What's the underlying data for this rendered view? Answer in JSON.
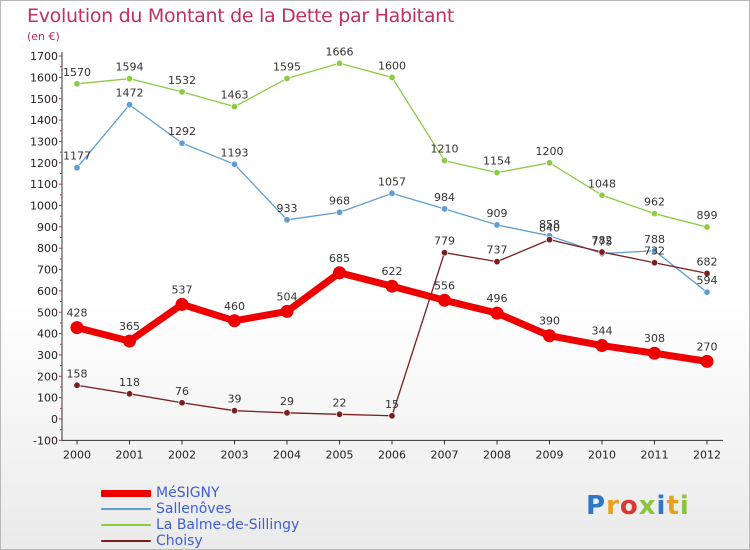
{
  "header": {
    "title": "Evolution du Montant de la Dette par Habitant",
    "unit": "(en €)"
  },
  "brand": {
    "text": "Proxiti",
    "letter_colors": [
      "#2f78c8",
      "#e8a020",
      "#d83a30",
      "#8cc43c",
      "#2f78c8",
      "#e8a020",
      "#8cc43c"
    ]
  },
  "chart_data": {
    "type": "line",
    "title": "Evolution du Montant de la Dette par Habitant",
    "subtitle": "(en €)",
    "xlabel": "",
    "ylabel": "",
    "x": [
      "2000",
      "2001",
      "2002",
      "2003",
      "2004",
      "2005",
      "2006",
      "2007",
      "2008",
      "2009",
      "2010",
      "2011",
      "2012"
    ],
    "ylim": [
      -100,
      1700
    ],
    "yticks": [
      -100,
      0,
      100,
      200,
      300,
      400,
      500,
      600,
      700,
      800,
      900,
      1000,
      1100,
      1200,
      1300,
      1400,
      1500,
      1600,
      1700
    ],
    "grid": false,
    "legend_position": "bottom-left",
    "series": [
      {
        "name": "MéSIGNY",
        "color": "#ee0000",
        "values": [
          428,
          365,
          537,
          460,
          504,
          685,
          622,
          556,
          496,
          390,
          344,
          308,
          270
        ]
      },
      {
        "name": "Sallenôves",
        "color": "#5f9ed2",
        "values": [
          1177,
          1472,
          1292,
          1193,
          933,
          968,
          1057,
          984,
          909,
          858,
          775,
          788,
          594
        ]
      },
      {
        "name": "La Balme-de-Sillingy",
        "color": "#8ccc44",
        "values": [
          1570,
          1594,
          1532,
          1463,
          1595,
          1666,
          1600,
          1210,
          1154,
          1200,
          1048,
          962,
          899
        ]
      },
      {
        "name": "Choisy",
        "color": "#7a1e1e",
        "values": [
          158,
          118,
          76,
          39,
          29,
          22,
          15,
          779,
          737,
          840,
          782,
          732,
          682
        ]
      }
    ]
  }
}
